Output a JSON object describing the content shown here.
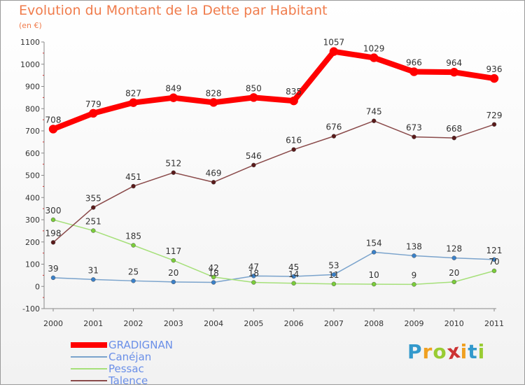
{
  "colors": {
    "title": "#f07c4c",
    "axis": "#888888",
    "text": "#333333",
    "legend_text": "#6a8fe8"
  },
  "chart_data": {
    "type": "line",
    "title": "Evolution du Montant de la Dette par Habitant",
    "subtitle": "(en €)",
    "xlabel": "",
    "ylabel": "",
    "x": [
      "2000",
      "2001",
      "2002",
      "2003",
      "2004",
      "2005",
      "2006",
      "2007",
      "2008",
      "2009",
      "2010",
      "2011"
    ],
    "ylim": [
      -100,
      1100
    ],
    "yticks": [
      -100,
      0,
      100,
      200,
      300,
      400,
      500,
      600,
      700,
      800,
      900,
      1000,
      1100
    ],
    "grid": false,
    "legend_position": "bottom-left",
    "series": [
      {
        "name": "GRADIGNAN",
        "color": "#ff0000",
        "marker": "#ff0000",
        "width": 8,
        "values": [
          708,
          779,
          827,
          849,
          828,
          850,
          835,
          1057,
          1029,
          966,
          964,
          936
        ]
      },
      {
        "name": "Canéjan",
        "color": "#7aa3cc",
        "marker": "#3a80c8",
        "width": 1.5,
        "values": [
          39,
          31,
          25,
          20,
          18,
          47,
          45,
          53,
          154,
          138,
          128,
          121
        ]
      },
      {
        "name": "Pessac",
        "color": "#a6e07a",
        "marker": "#7acc3a",
        "width": 1.5,
        "values": [
          300,
          251,
          185,
          117,
          42,
          18,
          14,
          11,
          10,
          9,
          20,
          70
        ]
      },
      {
        "name": "Talence",
        "color": "#8a4a4a",
        "marker": "#5a1a1a",
        "width": 1.5,
        "values": [
          198,
          355,
          451,
          512,
          469,
          546,
          616,
          676,
          745,
          673,
          668,
          729
        ]
      }
    ]
  },
  "logo": {
    "letters": [
      "P",
      "r",
      "o",
      "x",
      "i",
      "t",
      "i"
    ],
    "colors": [
      "#3399cc",
      "#f0a020",
      "#99cc33",
      "#cc3333",
      "#f0a020",
      "#3399cc",
      "#99cc33"
    ]
  }
}
